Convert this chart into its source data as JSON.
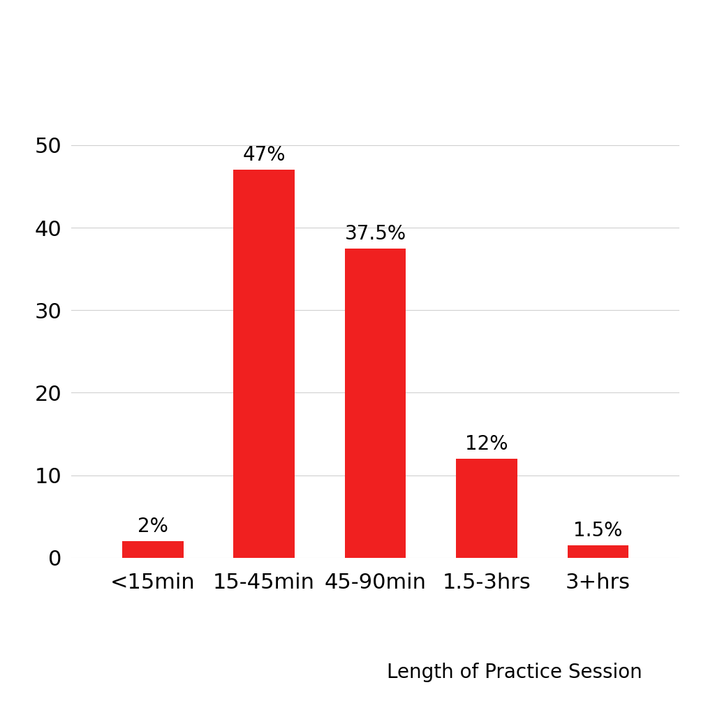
{
  "categories": [
    "<15min",
    "15-45min",
    "45-90min",
    "1.5-3hrs",
    "3+hrs"
  ],
  "values": [
    2,
    47,
    37.5,
    12,
    1.5
  ],
  "labels": [
    "2%",
    "47%",
    "37.5%",
    "12%",
    "1.5%"
  ],
  "bar_color": "#f02020",
  "background_color": "#ffffff",
  "xlabel": "Length of Practice Session",
  "ylim": [
    0,
    52
  ],
  "yticks": [
    0,
    10,
    20,
    30,
    40,
    50
  ],
  "grid_color": "#d0d0d0",
  "bar_width": 0.55,
  "label_fontsize": 20,
  "tick_fontsize": 22,
  "xlabel_fontsize": 20
}
